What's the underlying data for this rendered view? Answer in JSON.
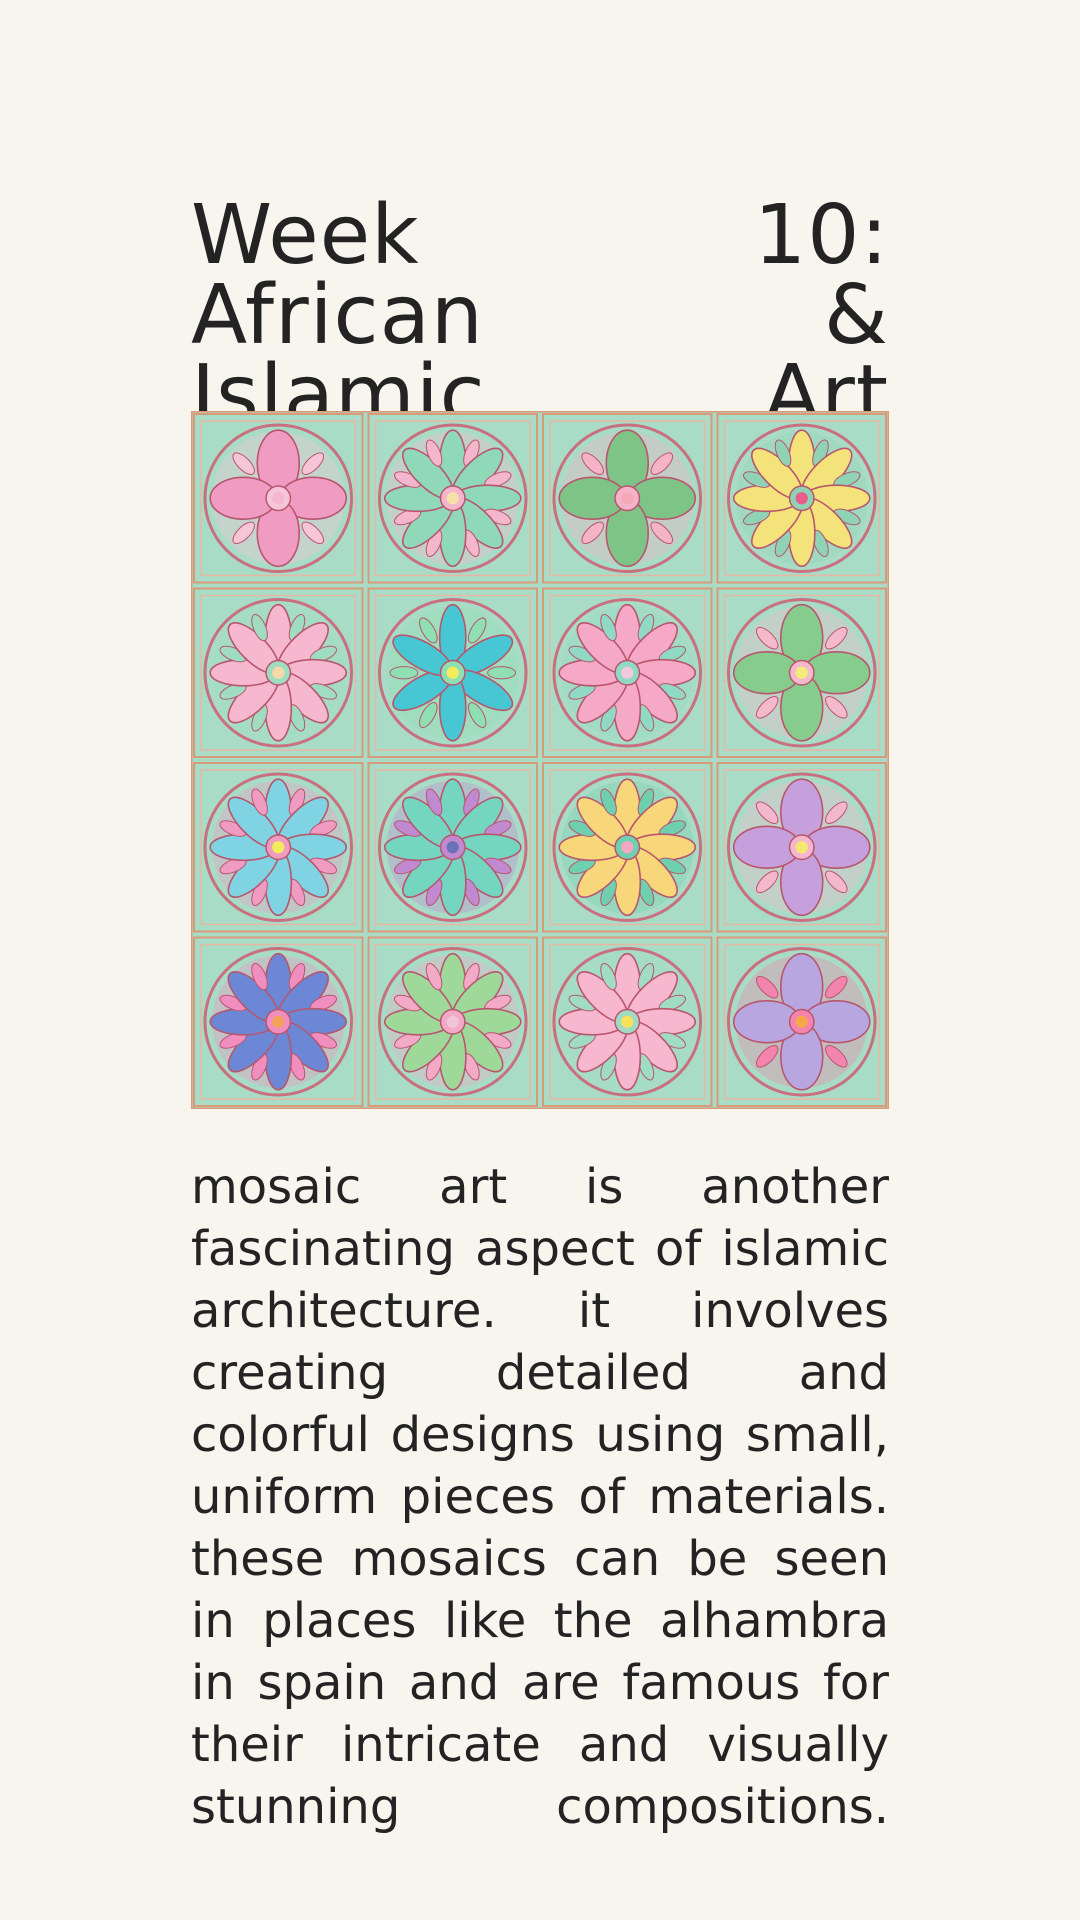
{
  "title": "Week 10: African & Islamic Art",
  "body": "mosaic art is another fascinating aspect of islamic architecture. it involves creating detailed and colorful designs using small, uniform pieces of materials. these mosaics can be seen in places like the alhambra in spain and are famous for their intricate and visually stunning compositions.",
  "colors": {
    "background": "#f8f5ef",
    "text": "#232323",
    "tile_ground": "#a9dcc6",
    "grout": "#d99a7a"
  },
  "mosaic": {
    "rows": 4,
    "cols": 4,
    "tiles": [
      {
        "petals": 4,
        "petal": "#f09cc2",
        "accent": "#f6c6d8",
        "center": "#f5b7cf"
      },
      {
        "petals": 8,
        "petal": "#8fd8b8",
        "accent": "#f3b6cc",
        "center": "#f7e0a8"
      },
      {
        "petals": 4,
        "petal": "#7fc487",
        "accent": "#f4b3c6",
        "center": "#f5a9b8"
      },
      {
        "petals": 8,
        "petal": "#f4e27a",
        "accent": "#8fd3b4",
        "center": "#e85d8a"
      },
      {
        "petals": 8,
        "petal": "#f5b8cf",
        "accent": "#9fdcc0",
        "center": "#f6d9a8"
      },
      {
        "petals": 6,
        "petal": "#47c7d4",
        "accent": "#8ee0b2",
        "center": "#f3ec5d"
      },
      {
        "petals": 8,
        "petal": "#f6a9c6",
        "accent": "#90d9c4",
        "center": "#f2c9da"
      },
      {
        "petals": 4,
        "petal": "#86cc8c",
        "accent": "#f4b9cc",
        "center": "#f4ec79"
      },
      {
        "petals": 8,
        "petal": "#7fd3e3",
        "accent": "#f09cc2",
        "center": "#f2ec5c"
      },
      {
        "petals": 8,
        "petal": "#74d6c0",
        "accent": "#c18ad0",
        "center": "#6a73b5"
      },
      {
        "petals": 8,
        "petal": "#f7d77a",
        "accent": "#6fd0b0",
        "center": "#f3a7c3"
      },
      {
        "petals": 4,
        "petal": "#c6a0dc",
        "accent": "#f3b8cd",
        "center": "#f4e96c"
      },
      {
        "petals": 8,
        "petal": "#6b87d6",
        "accent": "#f08ec0",
        "center": "#f4a25a"
      },
      {
        "petals": 8,
        "petal": "#9fd99a",
        "accent": "#f2aac7",
        "center": "#f2c4d6"
      },
      {
        "petals": 8,
        "petal": "#f6b7cf",
        "accent": "#9fdcc3",
        "center": "#f7e25a"
      },
      {
        "petals": 4,
        "petal": "#b8a6e0",
        "accent": "#f284ad",
        "center": "#f7a64a"
      }
    ]
  }
}
